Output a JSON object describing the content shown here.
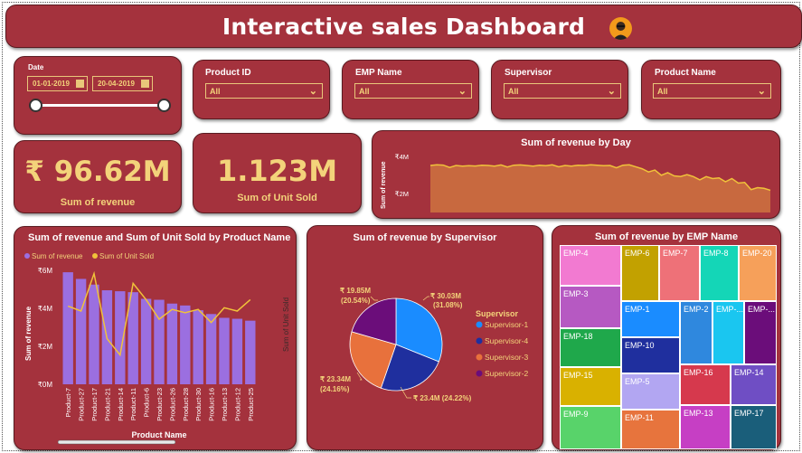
{
  "title": "Interactive sales Dashboard",
  "date_slicer": {
    "label": "Date",
    "start": "01-01-2019",
    "end": "20-04-2019"
  },
  "filters": [
    {
      "label": "Product ID",
      "value": "All"
    },
    {
      "label": "EMP Name",
      "value": "All"
    },
    {
      "label": "Supervisor",
      "value": "All"
    },
    {
      "label": "Product Name",
      "value": "All"
    }
  ],
  "kpis": {
    "revenue": {
      "value": "₹ 96.62M",
      "label": "Sum of revenue"
    },
    "units": {
      "value": "1.123M",
      "label": "Sum of Unit Sold"
    }
  },
  "day_chart": {
    "title": "Sum of revenue by Day",
    "ylabel": "Sum of revenue",
    "yticks": [
      "₹4M",
      "₹2M"
    ]
  },
  "product_chart": {
    "title": "Sum of revenue and Sum of Unit Sold by Product Name",
    "legend": [
      "Sum of revenue",
      "Sum of Unit Sold"
    ],
    "ylabel": "Sum of revenue",
    "y2label": "Sum of Unit Sold",
    "xlabel": "Product Name",
    "yticks": [
      "₹6M",
      "₹4M",
      "₹2M",
      "₹0M"
    ]
  },
  "supervisor_chart": {
    "title": "Sum of revenue by Supervisor",
    "legend_title": "Supervisor",
    "labels": [
      {
        "line1": "₹ 30.03M",
        "line2": "(31.08%)"
      },
      {
        "line1": "₹ 23.4M (24.22%)",
        "line2": ""
      },
      {
        "line1": "₹ 23.34M",
        "line2": "(24.16%)"
      },
      {
        "line1": "₹ 19.85M",
        "line2": "(20.54%)"
      }
    ]
  },
  "emp_chart": {
    "title": "Sum of revenue by EMP Name"
  },
  "colors": {
    "card": "#a4323d",
    "accent": "#f3d37a",
    "bar": "#9b6fe0",
    "line": "#f0c23a",
    "area": "#c8693f"
  },
  "chart_data": [
    {
      "type": "area",
      "title": "Sum of revenue by Day",
      "ylabel": "Sum of revenue",
      "ylim": [
        0,
        4500000
      ],
      "values": [
        3600000,
        3650000,
        3630000,
        3450000,
        3600000,
        3550000,
        3580000,
        3560000,
        3620000,
        3600000,
        3550000,
        3640000,
        3480000,
        3620000,
        3640000,
        3600000,
        3550000,
        3620000,
        3580000,
        3650000,
        3500000,
        3600000,
        3550000,
        3620000,
        3600000,
        3650000,
        3620000,
        3580000,
        3600000,
        3420000,
        3620000,
        3650000,
        3500000,
        3350000,
        3100000,
        3250000,
        2850000,
        3050000,
        2800000,
        2750000,
        2900000,
        2750000,
        2500000,
        2750000,
        2600000,
        2650000,
        2350000,
        2600000,
        2250000,
        2300000,
        1750000,
        1900000,
        1850000,
        1700000
      ]
    },
    {
      "type": "bar",
      "title": "Sum of revenue and Sum of Unit Sold by Product Name",
      "categories": [
        "Product-7",
        "Product-27",
        "Product-17",
        "Product-21",
        "Product-14",
        "Product-11",
        "Product-6",
        "Product-23",
        "Product-26",
        "Product-28",
        "Product-30",
        "Product-16",
        "Product-13",
        "Product-12",
        "Product-25"
      ],
      "xlabel": "Product Name",
      "ylabel": "Sum of revenue",
      "ylim": [
        0,
        6000000
      ],
      "series": [
        {
          "name": "Sum of revenue",
          "values": [
            5900000,
            5550000,
            5250000,
            4950000,
            4900000,
            4850000,
            4500000,
            4450000,
            4250000,
            4150000,
            3900000,
            3700000,
            3500000,
            3450000,
            3350000
          ]
        },
        {
          "name": "Sum of Unit Sold",
          "values": [
            48000,
            45000,
            68000,
            28000,
            18000,
            62000,
            52000,
            40000,
            46000,
            44000,
            46000,
            38000,
            47000,
            45000,
            52000
          ]
        }
      ]
    },
    {
      "type": "pie",
      "title": "Sum of revenue by Supervisor",
      "categories": [
        "Supervisor-1",
        "Supervisor-4",
        "Supervisor-3",
        "Supervisor-2"
      ],
      "values": [
        30.03,
        23.4,
        23.34,
        19.85
      ]
    },
    {
      "type": "heatmap",
      "title": "Sum of revenue by EMP Name",
      "categories": [
        "EMP-4",
        "EMP-6",
        "EMP-7",
        "EMP-8",
        "EMP-20",
        "EMP-3",
        "EMP-1",
        "EMP-2",
        "EMP-...",
        "EMP-...",
        "EMP-18",
        "EMP-10",
        "EMP-15",
        "EMP-5",
        "EMP-16",
        "EMP-14",
        "EMP-9",
        "EMP-11",
        "EMP-13",
        "EMP-17"
      ]
    }
  ]
}
